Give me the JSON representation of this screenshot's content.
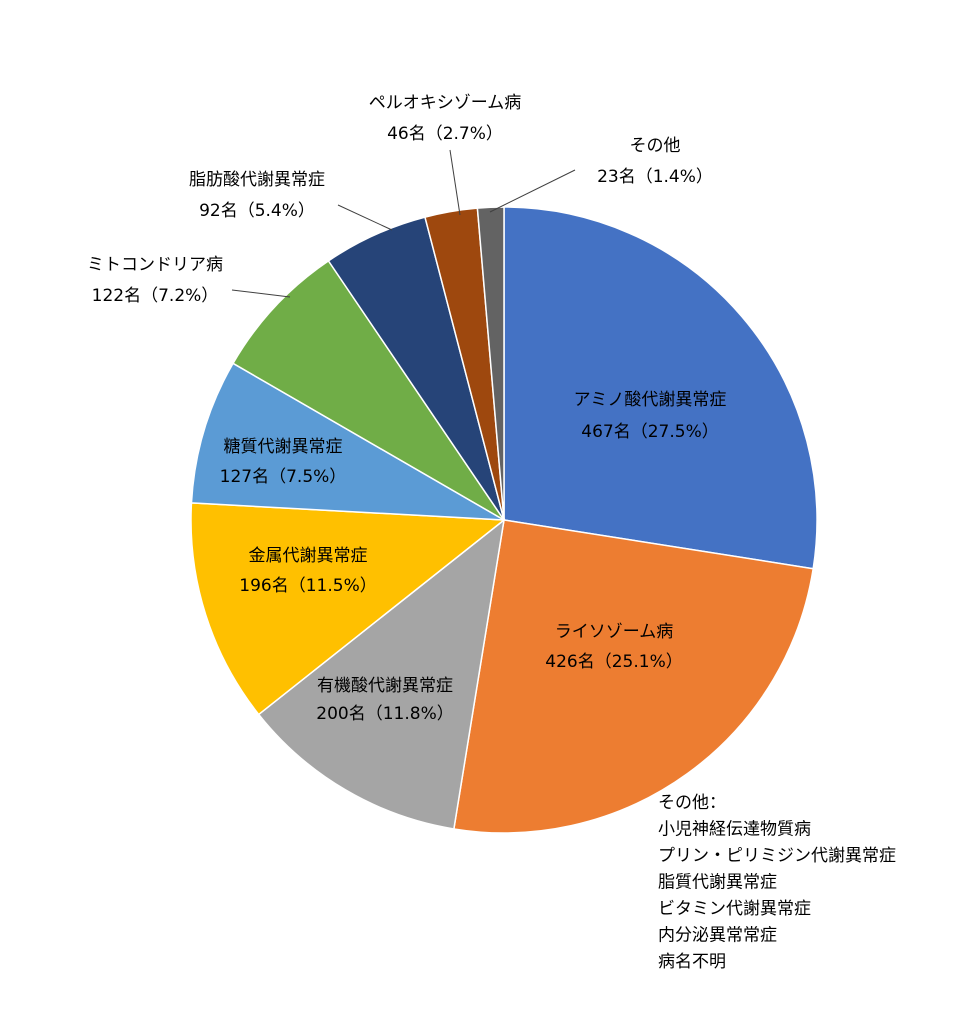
{
  "chart_data": {
    "type": "pie",
    "categories": [
      "アミノ酸代謝異常症",
      "ライソゾーム病",
      "有機酸代謝異常症",
      "金属代謝異常症",
      "糖質代謝異常症",
      "ミトコンドリア病",
      "脂肪酸代謝異常症",
      "ペルオキシゾーム病",
      "その他"
    ],
    "values": [
      467,
      426,
      200,
      196,
      127,
      122,
      92,
      46,
      23
    ],
    "value_labels": [
      "467名（27.5%）",
      "426名（25.1%）",
      "200名（11.8%）",
      "196名（11.5%）",
      "127名（7.5%）",
      "122名（7.2%）",
      "92名（5.4%）",
      "46名（2.7%）",
      "23名（1.4%）"
    ],
    "colors": [
      "#4472c4",
      "#ed7d31",
      "#a5a5a5",
      "#ffc000",
      "#5b9bd5",
      "#70ad47",
      "#264478",
      "#9e480e",
      "#636363"
    ],
    "note": [
      "その他：",
      "小児神経伝達物質病",
      "プリン・ピリミジン代謝異常症",
      "脂質代謝異常症",
      "ビタミン代謝異常症",
      "内分泌異常常症",
      "病名不明"
    ]
  }
}
